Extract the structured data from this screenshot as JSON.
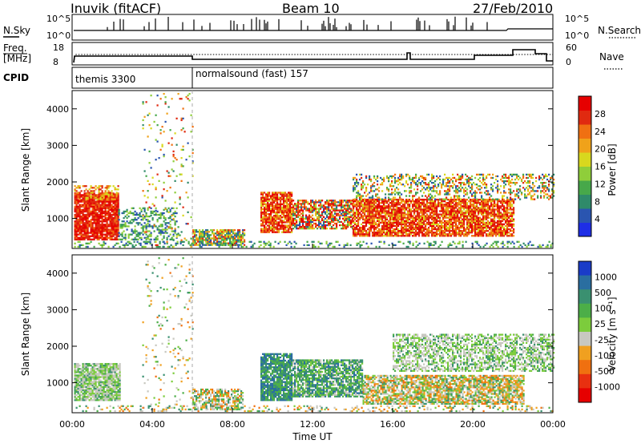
{
  "header": {
    "station": "Inuvik (fitACF)",
    "beam": "Beam 10",
    "date": "27/Feb/2010"
  },
  "summary_panels": {
    "nsky_label": "N.Sky",
    "nsearch_label": "N.Search",
    "freq_label_line1": "Freq.",
    "freq_label_line2": "[MHz]",
    "nave_label": "Nave",
    "cpid_label": "CPID",
    "noise_ticks": [
      "10^5",
      "10^0"
    ],
    "freq_ticks": [
      "18",
      "8"
    ],
    "nave_ticks": [
      "60",
      "0"
    ],
    "cpid_modes": [
      "themis 3300",
      "normalsound (fast) 157"
    ]
  },
  "chart_data": [
    {
      "type": "heatmap",
      "title": "",
      "ylabel": "Slant Range [km]",
      "xlabel": "",
      "y_ticks": [
        "1000",
        "2000",
        "3000",
        "4000"
      ],
      "ylim": [
        180,
        4500
      ],
      "xlim": [
        0,
        24
      ],
      "colorbar": {
        "label": "Power [dB]",
        "ticks": [
          "4",
          "8",
          "12",
          "16",
          "20",
          "24",
          "28"
        ],
        "colors": [
          "#1e2ee6",
          "#2a55b0",
          "#2f8a6a",
          "#47a84a",
          "#8fce3a",
          "#d8d81e",
          "#f0a21a",
          "#f07012",
          "#e02a10",
          "#e60000"
        ]
      }
    },
    {
      "type": "heatmap",
      "title": "",
      "ylabel": "Slant Range [km]",
      "xlabel": "Time UT",
      "x_ticks": [
        "00:00",
        "04:00",
        "08:00",
        "12:00",
        "16:00",
        "20:00",
        "00:00"
      ],
      "y_ticks": [
        "1000",
        "2000",
        "3000",
        "4000"
      ],
      "ylim": [
        180,
        4500
      ],
      "xlim": [
        0,
        24
      ],
      "colorbar": {
        "label": "Velocity [m s⁻¹]",
        "ticks": [
          "1000",
          "500",
          "100",
          "25",
          "-25",
          "-100",
          "-500",
          "-1000"
        ],
        "colors": [
          "#1a3cc8",
          "#2a6ea0",
          "#3a9070",
          "#4cae48",
          "#7ccc3c",
          "#c8c8c0",
          "#f0a020",
          "#f07010",
          "#e83010",
          "#e60000"
        ]
      }
    }
  ]
}
